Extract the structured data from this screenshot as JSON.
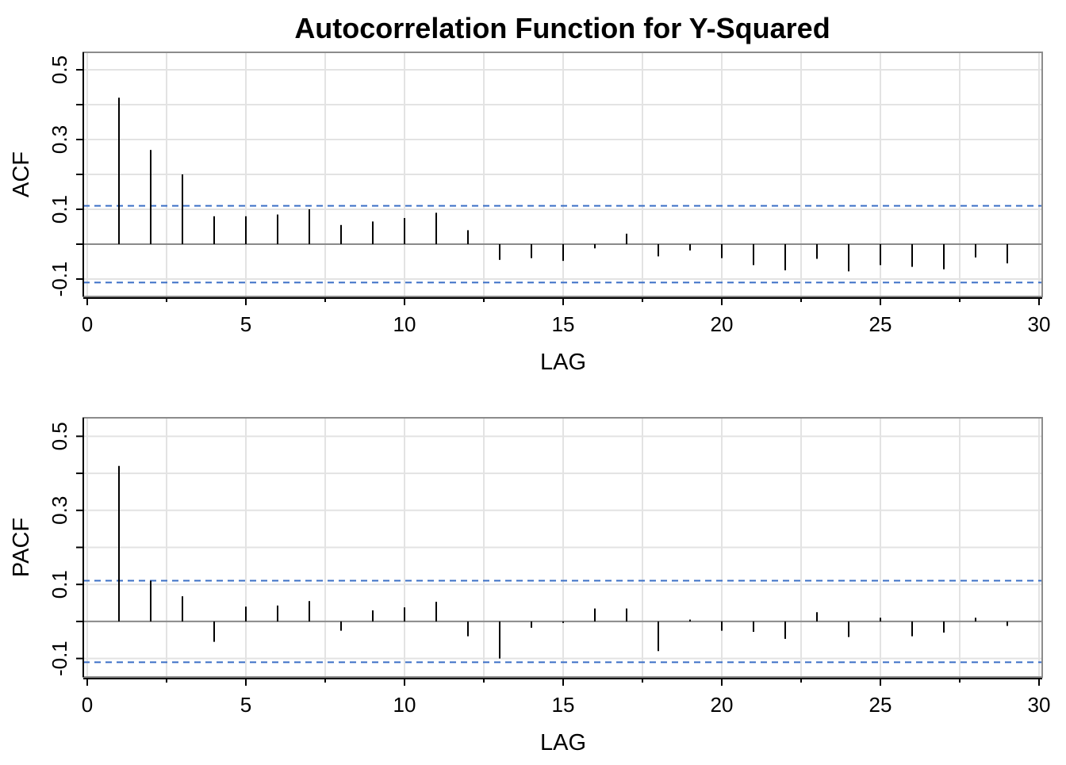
{
  "title": "Autocorrelation Function for Y-Squared",
  "colors": {
    "grid": "#e3e3e3",
    "frame": "#8c8c8c",
    "bars": "#000000",
    "bounds": "#3b6fc6"
  },
  "chart_data": [
    {
      "type": "bar",
      "name": "ACF",
      "xlabel": "LAG",
      "ylabel": "ACF",
      "xlim": [
        0,
        30
      ],
      "ylim": [
        -0.15,
        0.55
      ],
      "x_ticks": [
        0,
        5,
        10,
        15,
        20,
        25,
        30
      ],
      "x_tick_labels": [
        "0",
        "5",
        "10",
        "15",
        "20",
        "25",
        "30"
      ],
      "y_ticks": [
        -0.1,
        0.1,
        0.3,
        0.5
      ],
      "y_tick_labels": [
        "-0.1",
        "0.1",
        "0.3",
        "0.5"
      ],
      "grid": true,
      "confidence_bounds": [
        0.11,
        -0.11
      ],
      "lags": [
        1,
        2,
        3,
        4,
        5,
        6,
        7,
        8,
        9,
        10,
        11,
        12,
        13,
        14,
        15,
        16,
        17,
        18,
        19,
        20,
        21,
        22,
        23,
        24,
        25,
        26,
        27,
        28,
        29
      ],
      "values": [
        0.42,
        0.27,
        0.2,
        0.08,
        0.08,
        0.085,
        0.1,
        0.055,
        0.065,
        0.075,
        0.09,
        0.04,
        -0.045,
        -0.04,
        -0.048,
        -0.012,
        0.03,
        -0.035,
        -0.018,
        -0.04,
        -0.06,
        -0.075,
        -0.042,
        -0.078,
        -0.06,
        -0.065,
        -0.072,
        -0.038,
        -0.055
      ]
    },
    {
      "type": "bar",
      "name": "PACF",
      "xlabel": "LAG",
      "ylabel": "PACF",
      "xlim": [
        0,
        30
      ],
      "ylim": [
        -0.15,
        0.55
      ],
      "x_ticks": [
        0,
        5,
        10,
        15,
        20,
        25,
        30
      ],
      "x_tick_labels": [
        "0",
        "5",
        "10",
        "15",
        "20",
        "25",
        "30"
      ],
      "y_ticks": [
        -0.1,
        0.1,
        0.3,
        0.5
      ],
      "y_tick_labels": [
        "-0.1",
        "0.1",
        "0.3",
        "0.5"
      ],
      "grid": true,
      "confidence_bounds": [
        0.11,
        -0.11
      ],
      "lags": [
        1,
        2,
        3,
        4,
        5,
        6,
        7,
        8,
        9,
        10,
        11,
        12,
        13,
        14,
        15,
        16,
        17,
        18,
        19,
        20,
        21,
        22,
        23,
        24,
        25,
        26,
        27,
        28,
        29
      ],
      "values": [
        0.42,
        0.11,
        0.068,
        -0.055,
        0.04,
        0.043,
        0.055,
        -0.025,
        0.03,
        0.038,
        0.053,
        -0.04,
        -0.1,
        -0.017,
        -0.004,
        0.035,
        0.035,
        -0.08,
        0.005,
        -0.025,
        -0.028,
        -0.047,
        0.025,
        -0.042,
        0.01,
        -0.04,
        -0.03,
        0.01,
        -0.012
      ]
    }
  ]
}
